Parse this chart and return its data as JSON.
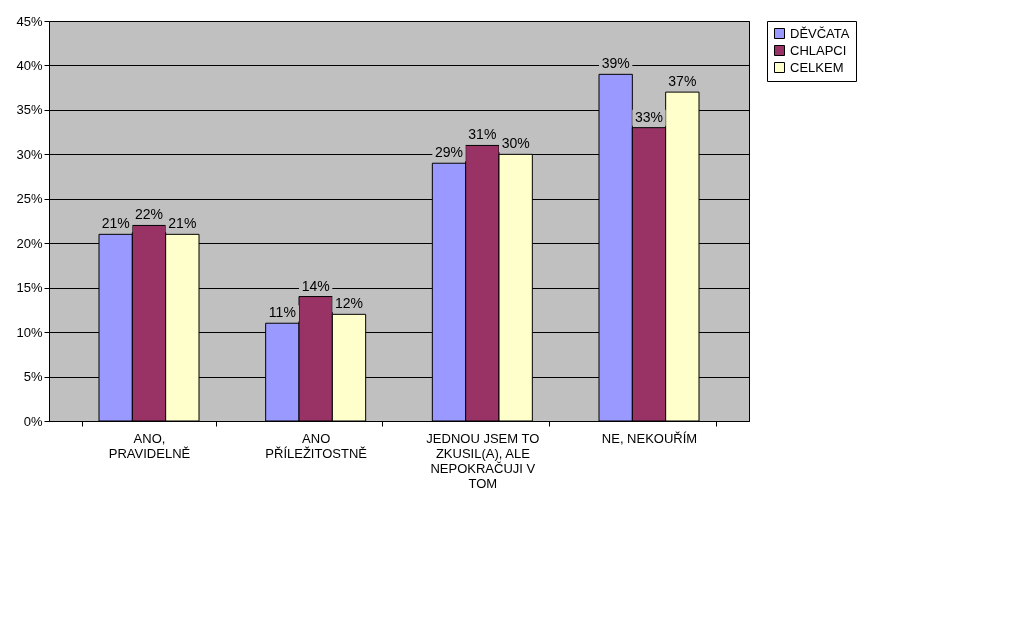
{
  "chart_data": {
    "type": "bar",
    "categories": [
      "ANO, PRAVIDELNĚ",
      "ANO PŘÍLEŽITOSTNĚ",
      "JEDNOU JSEM TO ZKUSIL(A), ALE NEPOKRAČUJI V TOM",
      "NE, NEKOUŘÍM"
    ],
    "series": [
      {
        "name": "DĚVČATA",
        "color": "#9999ff",
        "values": [
          21,
          11,
          29,
          39
        ],
        "value_labels": [
          "21%",
          "11%",
          "29%",
          "39%"
        ]
      },
      {
        "name": "CHLAPCI",
        "color": "#993366",
        "values": [
          22,
          14,
          31,
          33
        ],
        "value_labels": [
          "22%",
          "14%",
          "31%",
          "33%"
        ]
      },
      {
        "name": "CELKEM",
        "color": "#ffffcc",
        "values": [
          21,
          12,
          30,
          37
        ],
        "value_labels": [
          "21%",
          "12%",
          "30%",
          "37%"
        ]
      }
    ],
    "ylim": [
      0,
      45
    ],
    "yticks": [
      {
        "value": 0,
        "label": "0%"
      },
      {
        "value": 5,
        "label": "5%"
      },
      {
        "value": 10,
        "label": "10%"
      },
      {
        "value": 15,
        "label": "15%"
      },
      {
        "value": 20,
        "label": "20%"
      },
      {
        "value": 25,
        "label": "25%"
      },
      {
        "value": 30,
        "label": "30%"
      },
      {
        "value": 35,
        "label": "35%"
      },
      {
        "value": 40,
        "label": "40%"
      },
      {
        "value": 45,
        "label": "45%"
      }
    ],
    "grid": "y",
    "legend": "right"
  }
}
